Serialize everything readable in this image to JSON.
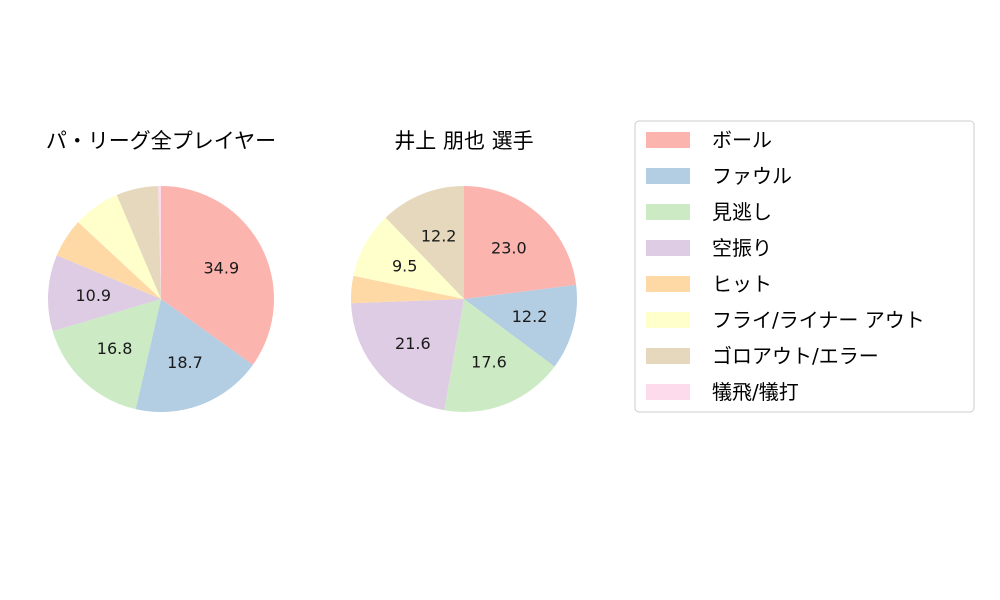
{
  "chart_data": [
    {
      "type": "pie",
      "title": "パ・リーグ全プレイヤー",
      "categories": [
        "ボール",
        "ファウル",
        "見逃し",
        "空振り",
        "ヒット",
        "フライ/ライナー アウト",
        "ゴロアウト/エラー",
        "犠飛/犠打"
      ],
      "values": [
        34.9,
        18.7,
        16.8,
        10.9,
        5.6,
        6.7,
        6.0,
        0.4
      ],
      "labels": [
        "34.9",
        "18.7",
        "16.8",
        "10.9",
        "",
        "",
        "",
        ""
      ]
    },
    {
      "type": "pie",
      "title": "井上 朋也  選手",
      "categories": [
        "ボール",
        "ファウル",
        "見逃し",
        "空振り",
        "ヒット",
        "フライ/ライナー アウト",
        "ゴロアウト/エラー",
        "犠飛/犠打"
      ],
      "values": [
        23.0,
        12.2,
        17.6,
        21.6,
        3.9,
        9.5,
        12.2,
        0.0
      ],
      "labels": [
        "23.0",
        "12.2",
        "17.6",
        "21.6",
        "",
        "9.5",
        "12.2",
        ""
      ]
    }
  ],
  "legend": {
    "placement": "right",
    "items": [
      "ボール",
      "ファウル",
      "見逃し",
      "空振り",
      "ヒット",
      "フライ/ライナー アウト",
      "ゴロアウト/エラー",
      "犠飛/犠打"
    ]
  },
  "colors": [
    "#fbb4ae",
    "#b3cde3",
    "#ccebc5",
    "#decbe4",
    "#fed9a6",
    "#ffffcc",
    "#e5d8bd",
    "#fddaec"
  ]
}
